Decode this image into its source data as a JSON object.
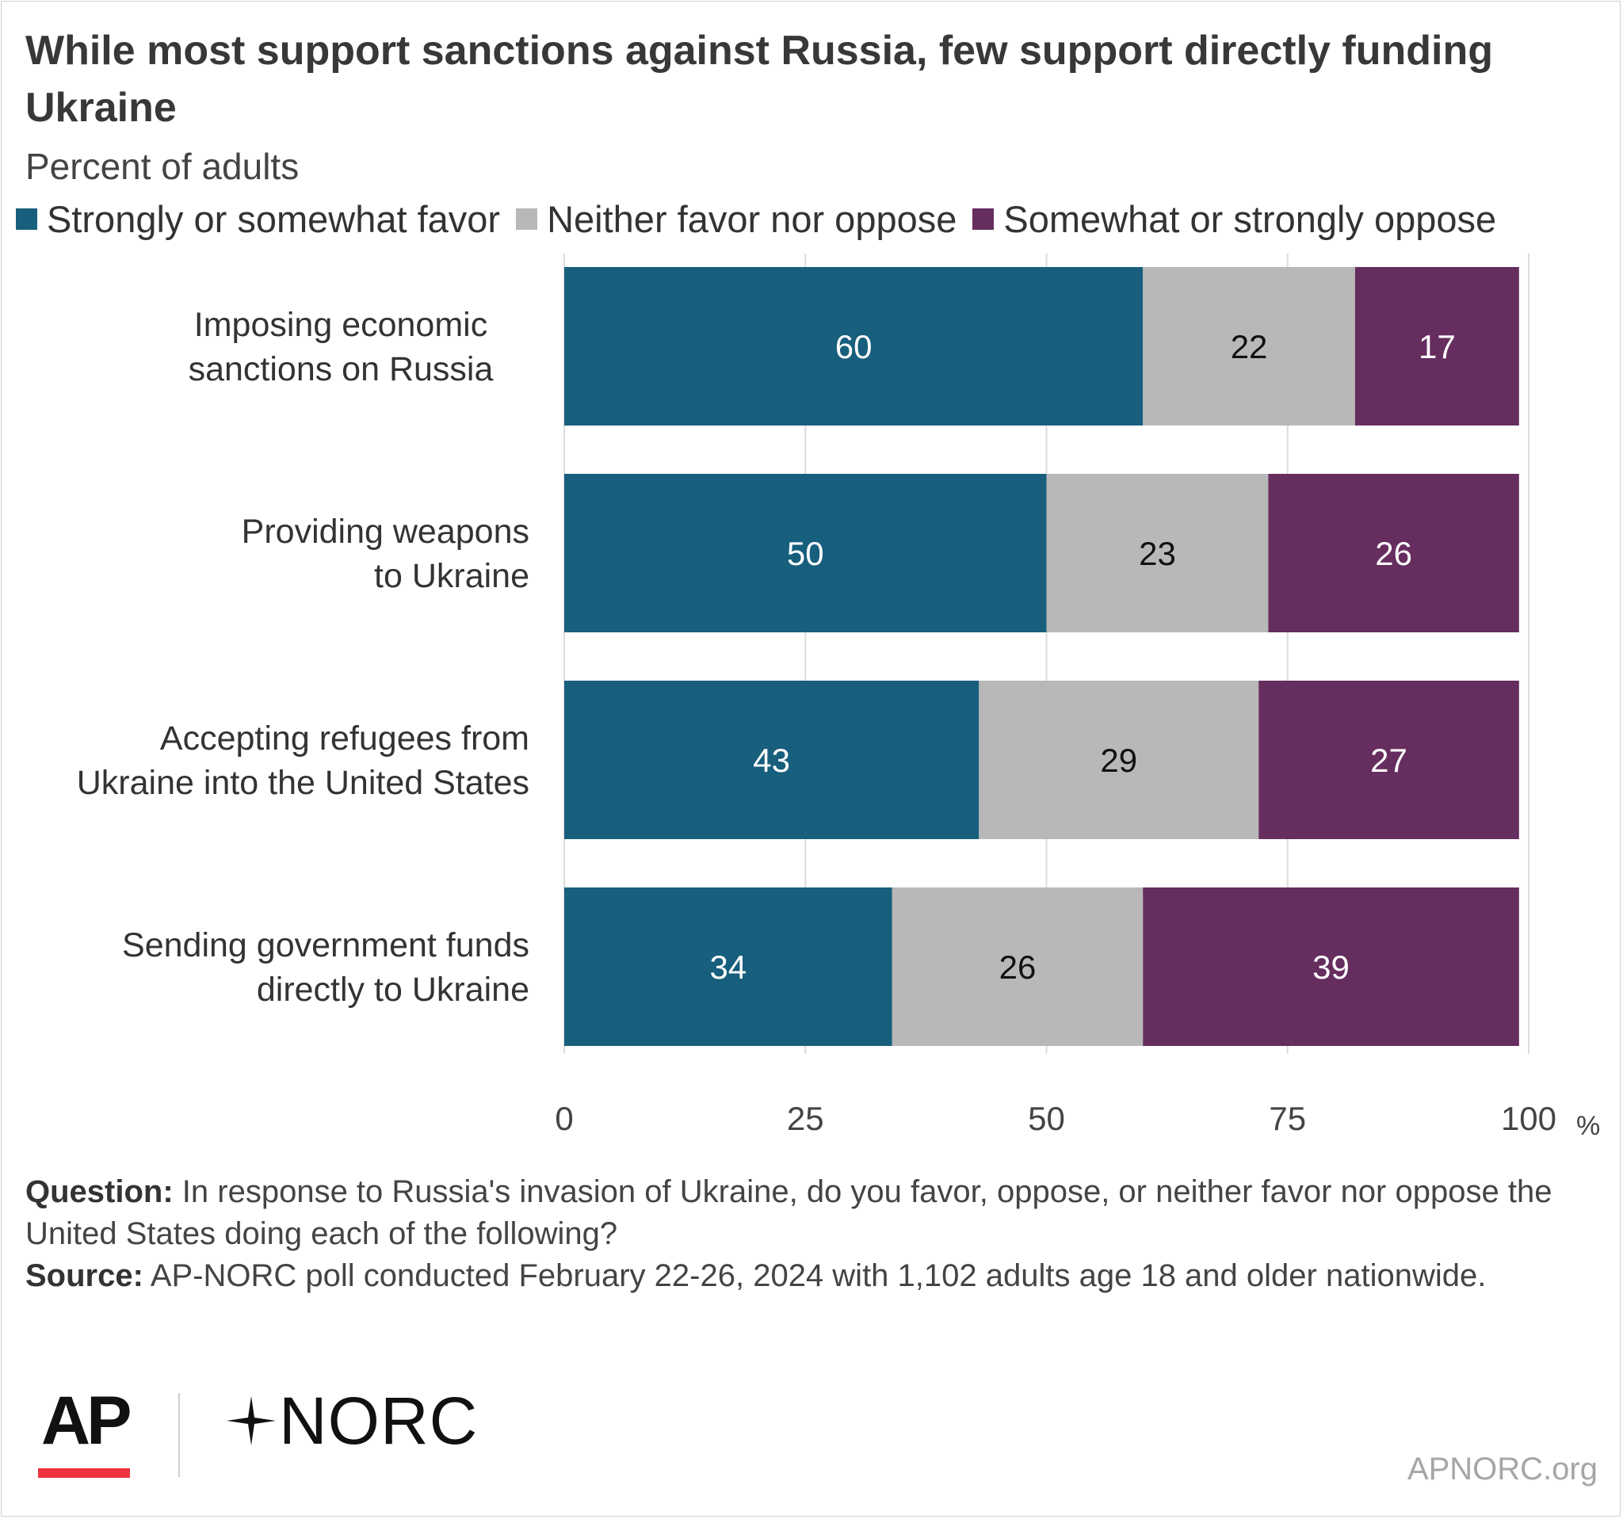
{
  "chart_data": {
    "type": "bar",
    "orientation": "horizontal",
    "stacked": true,
    "title": "While most support sanctions against Russia, few support directly funding Ukraine",
    "subtitle": "Percent of adults",
    "categories": [
      "Imposing economic sanctions on Russia",
      "Providing weapons to Ukraine",
      "Accepting refugees from Ukraine into the United States",
      "Sending government funds directly to Ukraine"
    ],
    "series": [
      {
        "name": "Strongly or somewhat favor",
        "color": "#185e7d",
        "label_color": "#ffffff",
        "values": [
          60,
          50,
          43,
          34
        ]
      },
      {
        "name": "Neither favor nor oppose",
        "color": "#b8b8b8",
        "label_color": "#111111",
        "values": [
          22,
          23,
          29,
          26
        ]
      },
      {
        "name": "Somewhat or strongly oppose",
        "color": "#662d5f",
        "label_color": "#ffffff",
        "values": [
          17,
          26,
          27,
          39
        ]
      }
    ],
    "xlim": [
      0,
      100
    ],
    "xticks": [
      "0",
      "25",
      "50",
      "75",
      "100"
    ],
    "x_unit": "%",
    "grid": true,
    "legend_position": "top-left"
  },
  "notes": {
    "question_label": "Question:",
    "question_text": " In response to Russia's invasion of Ukraine, do you favor, oppose, or neither favor nor oppose the United States doing each of the following?",
    "source_label": "Source:",
    "source_text": " AP-NORC poll conducted February 22-26, 2024 with 1,102 adults age 18 and older nationwide."
  },
  "branding": {
    "ap_logo": "AP",
    "norc_logo": "NORC",
    "website": "APNORC.org"
  }
}
